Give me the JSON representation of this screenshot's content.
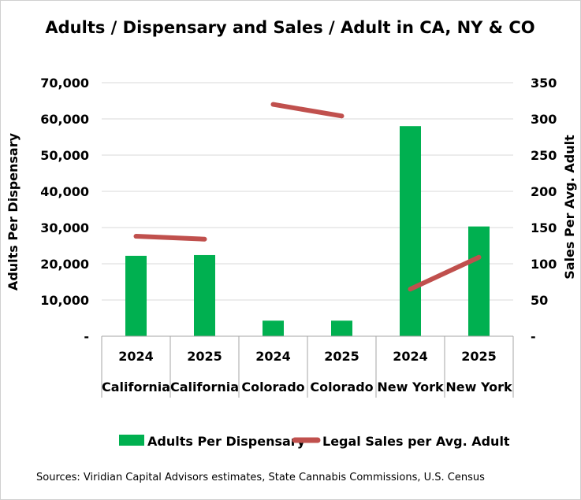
{
  "chart_data": {
    "type": "bar",
    "title": "Adults / Dispensary and Sales / Adult in CA, NY & CO",
    "categories": [
      [
        "2024",
        "California"
      ],
      [
        "2025",
        "California"
      ],
      [
        "2024",
        "Colorado"
      ],
      [
        "2025",
        "Colorado"
      ],
      [
        "2024",
        "New York"
      ],
      [
        "2025",
        "New York"
      ]
    ],
    "ylabel": "Adults Per Dispensary",
    "y2label": "Sales Per Avg. Adult",
    "ylim": [
      0,
      70000
    ],
    "y2lim": [
      0,
      350
    ],
    "yticks": [
      "-",
      "10,000",
      "20,000",
      "30,000",
      "40,000",
      "50,000",
      "60,000",
      "70,000"
    ],
    "y2ticks": [
      "-",
      "50",
      "100",
      "150",
      "200",
      "250",
      "300",
      "350"
    ],
    "grid": true,
    "legend_position": "bottom",
    "series": [
      {
        "name": "Adults Per Dispensary",
        "kind": "bar",
        "axis": "left",
        "color": "#00b050",
        "values": [
          22200,
          22400,
          4300,
          4300,
          58000,
          30300
        ]
      },
      {
        "name": "Legal Sales per Avg. Adult",
        "kind": "line",
        "axis": "right",
        "color": "#c0504d",
        "segments": [
          {
            "from": 0,
            "to": 1,
            "values": [
              138,
              134
            ]
          },
          {
            "from": 2,
            "to": 3,
            "values": [
              320,
              304
            ]
          },
          {
            "from": 4,
            "to": 5,
            "values": [
              65,
              109
            ]
          }
        ]
      }
    ]
  },
  "source": "Sources: Viridian Capital Advisors estimates,  State Cannabis Commissions, U.S. Census"
}
